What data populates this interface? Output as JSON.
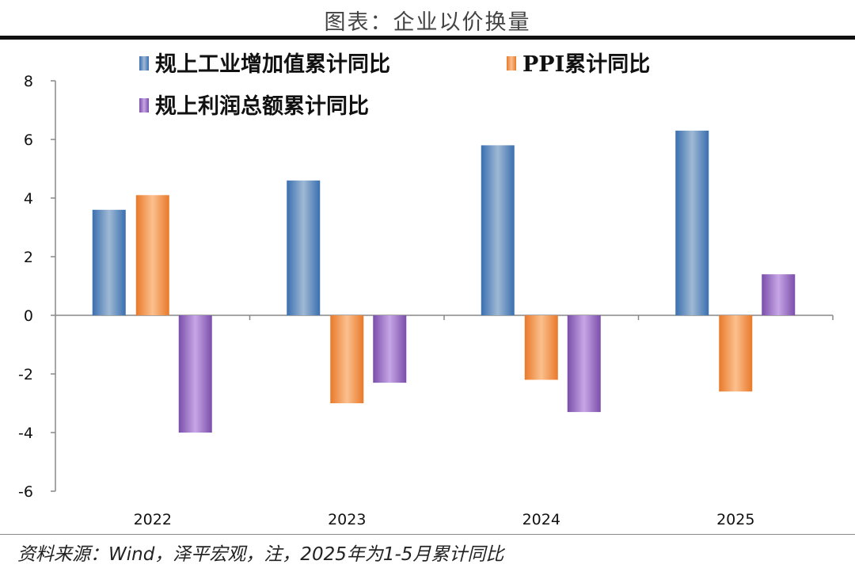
{
  "title": "图表：企业以价换量",
  "source": "资料来源：Wind，泽平宏观，注，2025年为1-5月累计同比",
  "chart_data": {
    "type": "bar",
    "categories": [
      "2022",
      "2023",
      "2024",
      "2025"
    ],
    "series": [
      {
        "name": "规上工业增加值累计同比",
        "values": [
          3.6,
          4.6,
          5.8,
          6.3
        ],
        "color": "#4f81bd"
      },
      {
        "name": "PPI累计同比",
        "values": [
          4.1,
          -3.0,
          -2.2,
          -2.6
        ],
        "color": "#f79646"
      },
      {
        "name": "规上利润总额累计同比",
        "values": [
          -4.0,
          -2.3,
          -3.3,
          1.4
        ],
        "color": "#8064a2"
      }
    ],
    "ylim": [
      -6,
      8
    ],
    "yticks": [
      "8",
      "6",
      "4",
      "2",
      "0",
      "-2",
      "-4",
      "-6"
    ],
    "grid": false,
    "legend": "top"
  }
}
